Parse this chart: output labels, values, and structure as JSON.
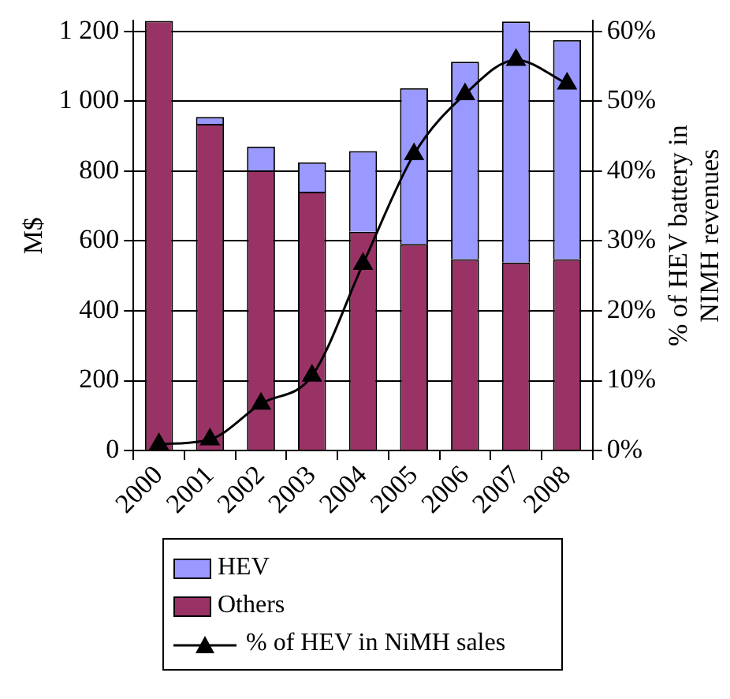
{
  "chart_data": {
    "type": "bar",
    "stacked": true,
    "categories": [
      "2000",
      "2001",
      "2002",
      "2003",
      "2004",
      "2005",
      "2006",
      "2007",
      "2008"
    ],
    "ylabel": "M$",
    "y2label": "% of HEV battery in\nNIMH revenues",
    "ylim": [
      0,
      1230
    ],
    "yticks": [
      {
        "value": 0,
        "label": "0"
      },
      {
        "value": 200,
        "label": "200"
      },
      {
        "value": 400,
        "label": "400"
      },
      {
        "value": 600,
        "label": "600"
      },
      {
        "value": 800,
        "label": "800"
      },
      {
        "value": 1000,
        "label": "1 000"
      },
      {
        "value": 1200,
        "label": "1 200"
      }
    ],
    "y2lim": [
      0,
      61.5
    ],
    "y2ticks": [
      {
        "value": 0,
        "label": "0%"
      },
      {
        "value": 10,
        "label": "10%"
      },
      {
        "value": 20,
        "label": "20%"
      },
      {
        "value": 30,
        "label": "30%"
      },
      {
        "value": 40,
        "label": "40%"
      },
      {
        "value": 50,
        "label": "50%"
      },
      {
        "value": 60,
        "label": "60%"
      }
    ],
    "grid": "y",
    "legend": "bottom",
    "series": [
      {
        "name": "Others",
        "color": "#993366",
        "values": [
          1230,
          935,
          802,
          741,
          626,
          591,
          548,
          538,
          548
        ]
      },
      {
        "name": "HEV",
        "color": "#9999ff",
        "values": [
          0,
          20,
          68,
          84,
          231,
          446,
          565,
          690,
          627
        ]
      },
      {
        "name": "% of HEV in NiMH sales",
        "type": "line",
        "axis": "y2",
        "color": "#000000",
        "marker": "triangle",
        "line_style": "solid",
        "values": [
          0.9,
          1.6,
          6.7,
          10.7,
          26.7,
          42.4,
          51,
          55.9,
          52.5
        ]
      }
    ]
  }
}
